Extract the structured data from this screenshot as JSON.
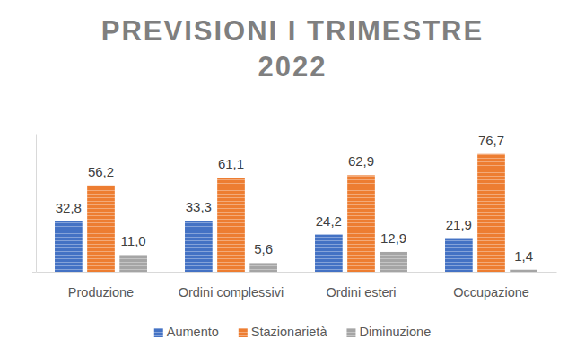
{
  "chart_data": {
    "type": "bar",
    "title": "PREVISIONI I TRIMESTRE 2022",
    "categories": [
      "Produzione",
      "Ordini complessivi",
      "Ordini esteri",
      "Occupazione"
    ],
    "series": [
      {
        "name": "Aumento",
        "color": "#4472c4",
        "values": [
          32.8,
          33.3,
          24.2,
          21.9
        ],
        "value_labels": [
          "32,8",
          "33,3",
          "24,2",
          "21,9"
        ]
      },
      {
        "name": "Stazionarietà",
        "color": "#ed7d31",
        "values": [
          56.2,
          61.1,
          62.9,
          76.7
        ],
        "value_labels": [
          "56,2",
          "61,1",
          "62,9",
          "76,7"
        ]
      },
      {
        "name": "Diminuzione",
        "color": "#a5a5a5",
        "values": [
          11.0,
          5.6,
          12.9,
          1.4
        ],
        "value_labels": [
          "11,0",
          "5,6",
          "12,9",
          "1,4"
        ]
      }
    ],
    "ylim": [
      0,
      90
    ],
    "yticks": [
      0
    ],
    "data_labels": true,
    "tick_labels": "x",
    "legend": "bottom"
  }
}
